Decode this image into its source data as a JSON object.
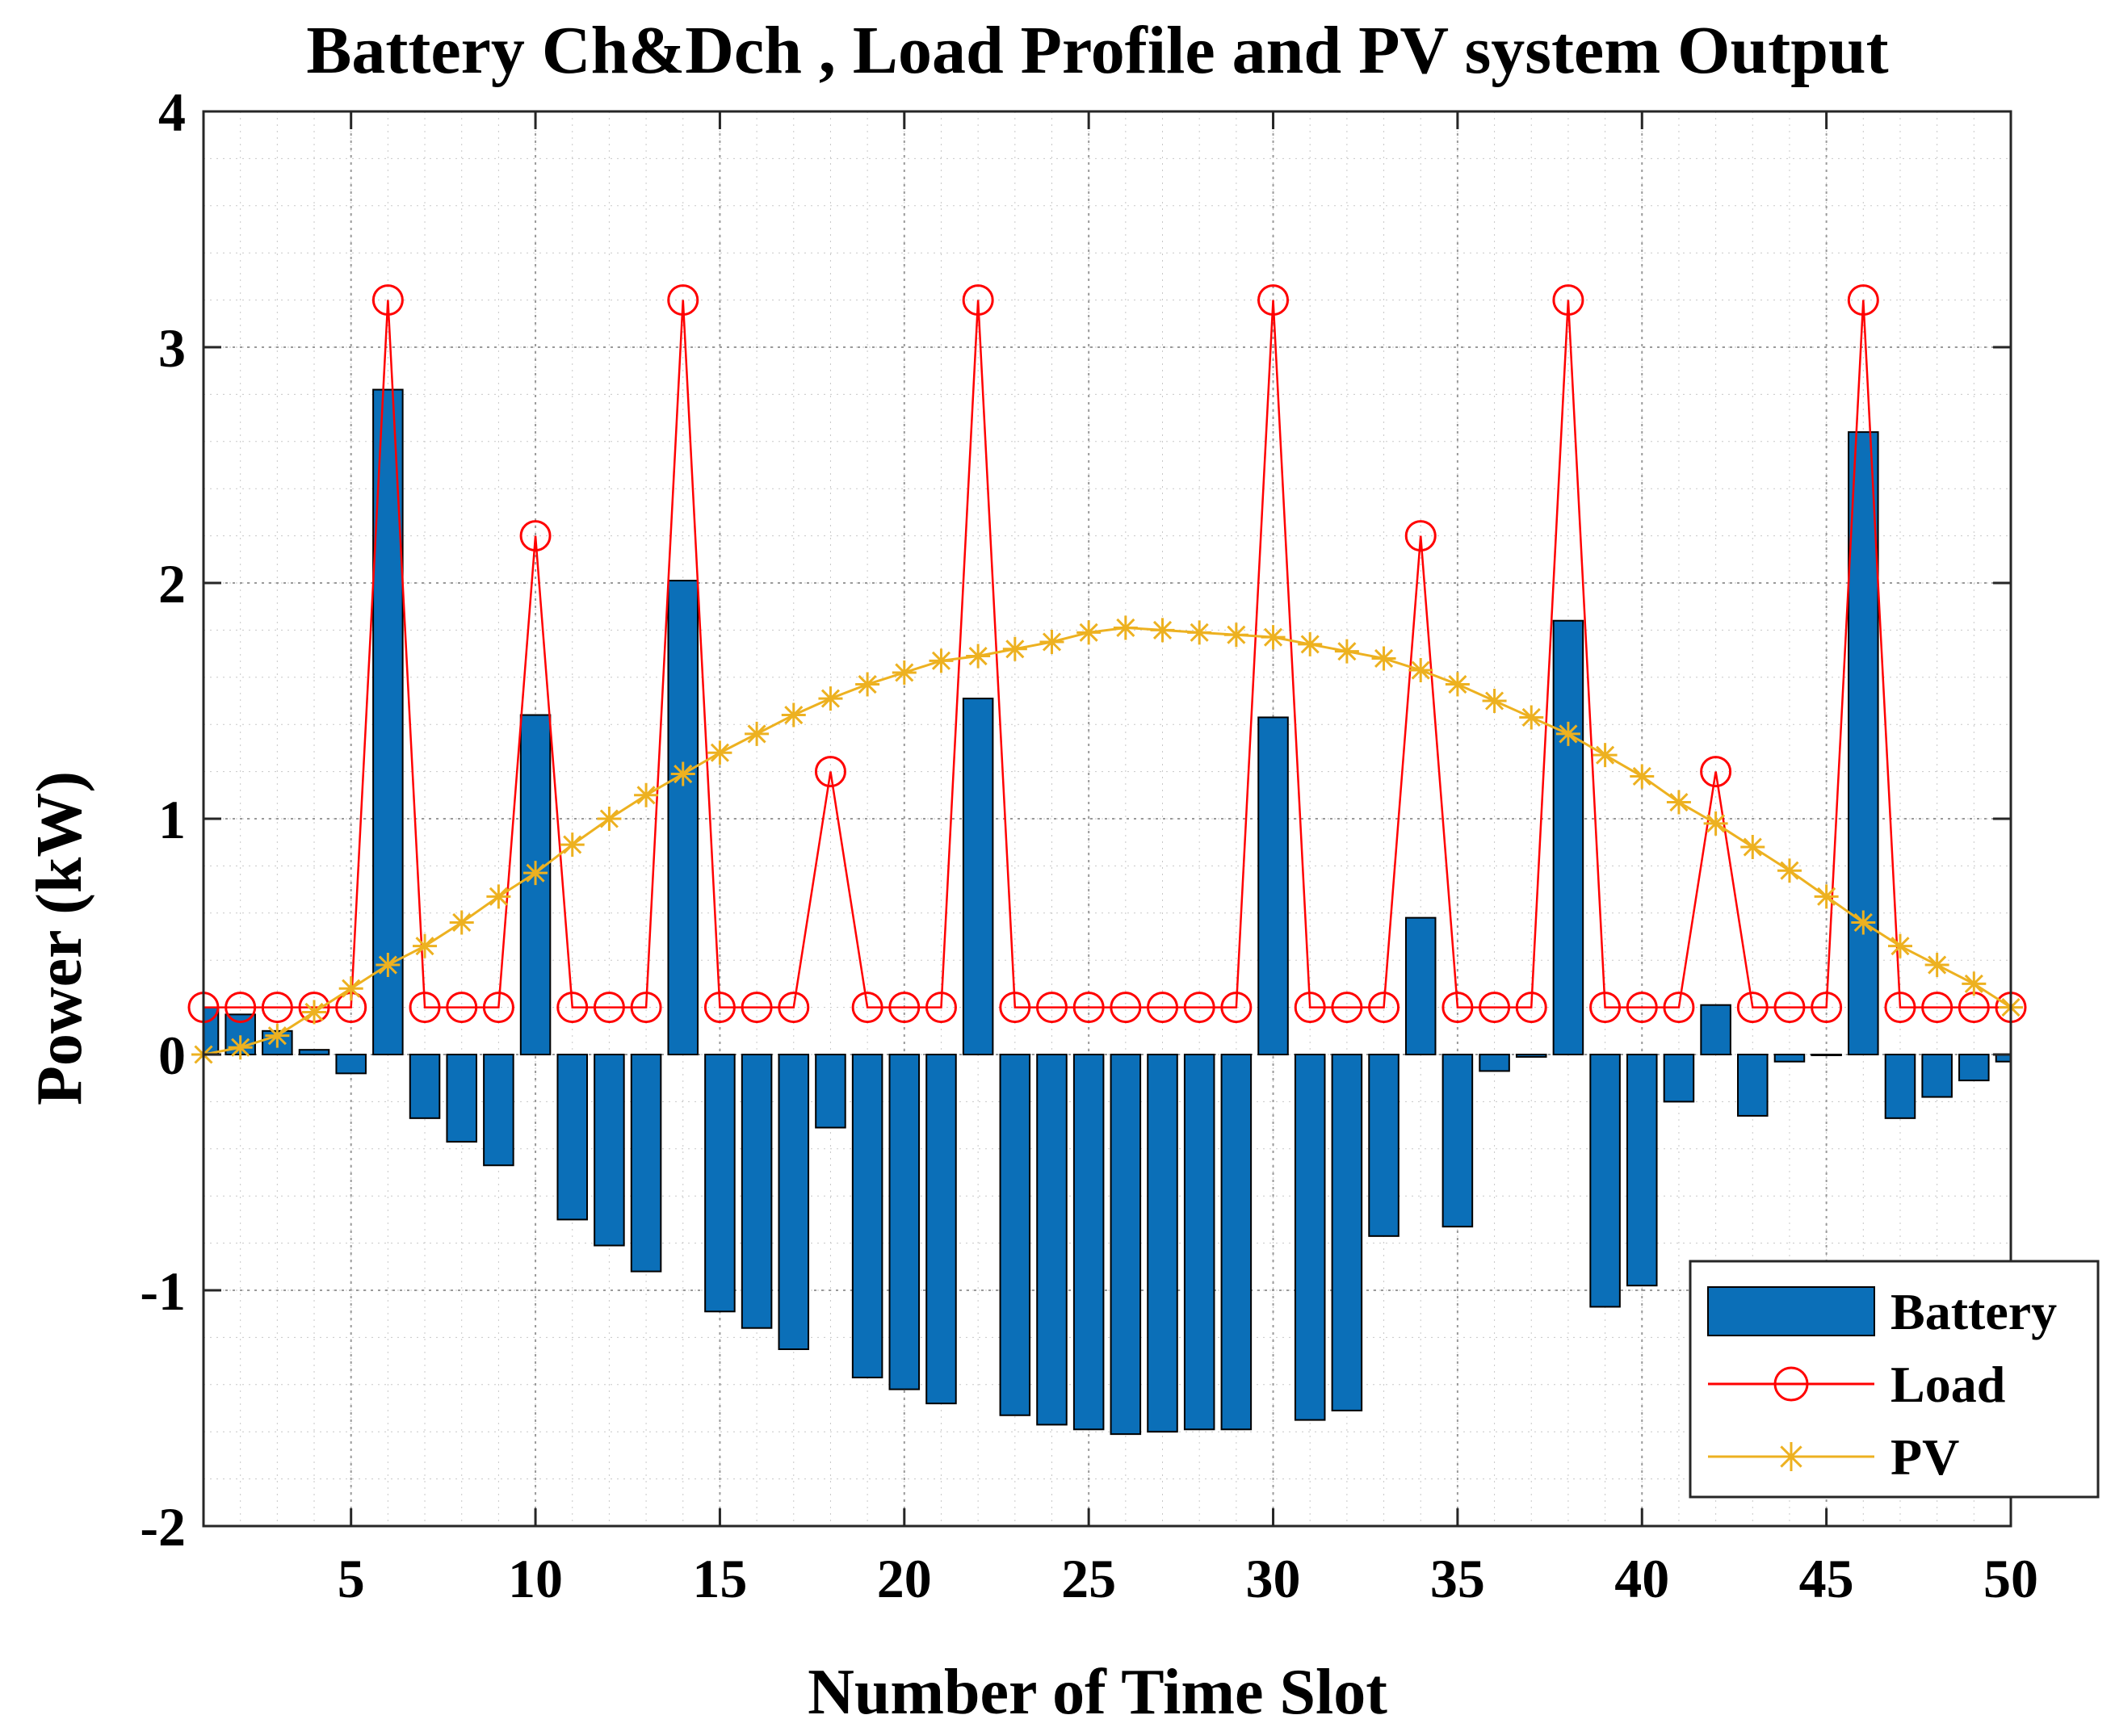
{
  "chart_data": {
    "type": "bar",
    "title": "Battery Ch&Dch , Load Profile and PV system Output",
    "xlabel": "Number of Time Slot",
    "ylabel": "Power (kW)",
    "xlim": [
      1,
      50
    ],
    "ylim": [
      -2,
      4
    ],
    "xticks": [
      5,
      10,
      15,
      20,
      25,
      30,
      35,
      40,
      45,
      50
    ],
    "yticks": [
      -2,
      -1,
      0,
      1,
      2,
      3,
      4
    ],
    "grid": "major and minor dotted",
    "legend_position": "bottom-right",
    "x": [
      1,
      2,
      3,
      4,
      5,
      6,
      7,
      8,
      9,
      10,
      11,
      12,
      13,
      14,
      15,
      16,
      17,
      18,
      19,
      20,
      21,
      22,
      23,
      24,
      25,
      26,
      27,
      28,
      29,
      30,
      31,
      32,
      33,
      34,
      35,
      36,
      37,
      38,
      39,
      40,
      41,
      42,
      43,
      44,
      45,
      46,
      47,
      48,
      49,
      50
    ],
    "series": [
      {
        "name": "Battery",
        "kind": "bar",
        "color": "#0B6FB8",
        "values": [
          0.2,
          0.17,
          0.1,
          0.02,
          -0.08,
          2.82,
          -0.27,
          -0.37,
          -0.47,
          1.44,
          -0.7,
          -0.81,
          -0.92,
          2.01,
          -1.09,
          -1.16,
          -1.25,
          -0.31,
          -1.37,
          -1.42,
          -1.48,
          1.51,
          -1.53,
          -1.57,
          -1.59,
          -1.61,
          -1.6,
          -1.59,
          -1.59,
          1.43,
          -1.55,
          -1.51,
          -0.77,
          0.58,
          -0.73,
          -0.07,
          -0.01,
          1.84,
          -1.07,
          -0.98,
          -0.2,
          0.21,
          -0.26,
          -0.03,
          0,
          2.64,
          -0.27,
          -0.18,
          -0.11,
          -0.03
        ]
      },
      {
        "name": "Load",
        "kind": "line",
        "marker": "circle",
        "color": "#FF0000",
        "values": [
          0.2,
          0.2,
          0.2,
          0.2,
          0.2,
          3.2,
          0.2,
          0.2,
          0.2,
          2.2,
          0.2,
          0.2,
          0.2,
          3.2,
          0.2,
          0.2,
          0.2,
          1.2,
          0.2,
          0.2,
          0.2,
          3.2,
          0.2,
          0.2,
          0.2,
          0.2,
          0.2,
          0.2,
          0.2,
          3.2,
          0.2,
          0.2,
          0.2,
          2.2,
          0.2,
          0.2,
          0.2,
          3.2,
          0.2,
          0.2,
          0.2,
          1.2,
          0.2,
          0.2,
          0.2,
          3.2,
          0.2,
          0.2,
          0.2,
          0.2
        ]
      },
      {
        "name": "PV",
        "kind": "line",
        "marker": "star",
        "color": "#EDB120",
        "values": [
          0,
          0.03,
          0.08,
          0.18,
          0.28,
          0.38,
          0.46,
          0.56,
          0.67,
          0.77,
          0.89,
          1.0,
          1.1,
          1.19,
          1.28,
          1.36,
          1.44,
          1.51,
          1.57,
          1.62,
          1.67,
          1.69,
          1.72,
          1.75,
          1.79,
          1.81,
          1.8,
          1.79,
          1.78,
          1.77,
          1.74,
          1.71,
          1.68,
          1.63,
          1.57,
          1.5,
          1.43,
          1.36,
          1.27,
          1.18,
          1.07,
          0.98,
          0.88,
          0.78,
          0.67,
          0.56,
          0.46,
          0.38,
          0.3,
          0.2
        ]
      }
    ]
  }
}
